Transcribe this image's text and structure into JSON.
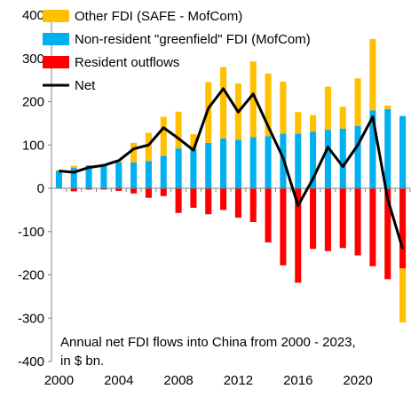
{
  "chart_data": {
    "type": "bar",
    "stacked": true,
    "x": [
      2000,
      2001,
      2002,
      2003,
      2004,
      2005,
      2006,
      2007,
      2008,
      2009,
      2010,
      2011,
      2012,
      2013,
      2014,
      2015,
      2016,
      2017,
      2018,
      2019,
      2020,
      2021,
      2022,
      2023
    ],
    "x_tick_labels": [
      "2000",
      "2004",
      "2008",
      "2012",
      "2016",
      "2020"
    ],
    "y_tick_labels": [
      "400",
      "300",
      "200",
      "100",
      "0",
      "-100",
      "-200",
      "-300",
      "-400"
    ],
    "ylim": [
      -400,
      400
    ],
    "series": [
      {
        "name": "Other FDI (SAFE - MofCom)",
        "color": "#FFC000",
        "values": [
          2,
          5,
          0,
          3,
          5,
          45,
          65,
          90,
          85,
          35,
          140,
          165,
          130,
          175,
          145,
          120,
          50,
          38,
          100,
          50,
          110,
          165,
          8,
          -125
        ]
      },
      {
        "name": "Non-resident \"greenfield\" FDI (MofCom)",
        "color": "#00B0F0",
        "values": [
          40,
          47,
          53,
          53,
          60,
          60,
          63,
          75,
          92,
          90,
          105,
          115,
          112,
          118,
          120,
          126,
          126,
          131,
          135,
          138,
          144,
          180,
          183,
          167
        ]
      },
      {
        "name": "Resident outflows",
        "color": "#FF0000",
        "values": [
          -1,
          -7,
          -3,
          -3,
          -6,
          -12,
          -22,
          -18,
          -57,
          -45,
          -60,
          -50,
          -68,
          -78,
          -125,
          -178,
          -218,
          -140,
          -145,
          -138,
          -155,
          -180,
          -210,
          -185
        ]
      },
      {
        "name": "Net",
        "color": "#000000",
        "type": "line",
        "values": [
          40,
          37,
          48,
          53,
          64,
          91,
          100,
          140,
          115,
          88,
          185,
          230,
          176,
          218,
          143,
          70,
          -40,
          22,
          95,
          50,
          100,
          165,
          -25,
          -140
        ]
      }
    ],
    "annotation": "Annual net FDI flows into China from 2000 - 2023, in $ bn.",
    "legend_position": "top-left",
    "grid": false
  }
}
